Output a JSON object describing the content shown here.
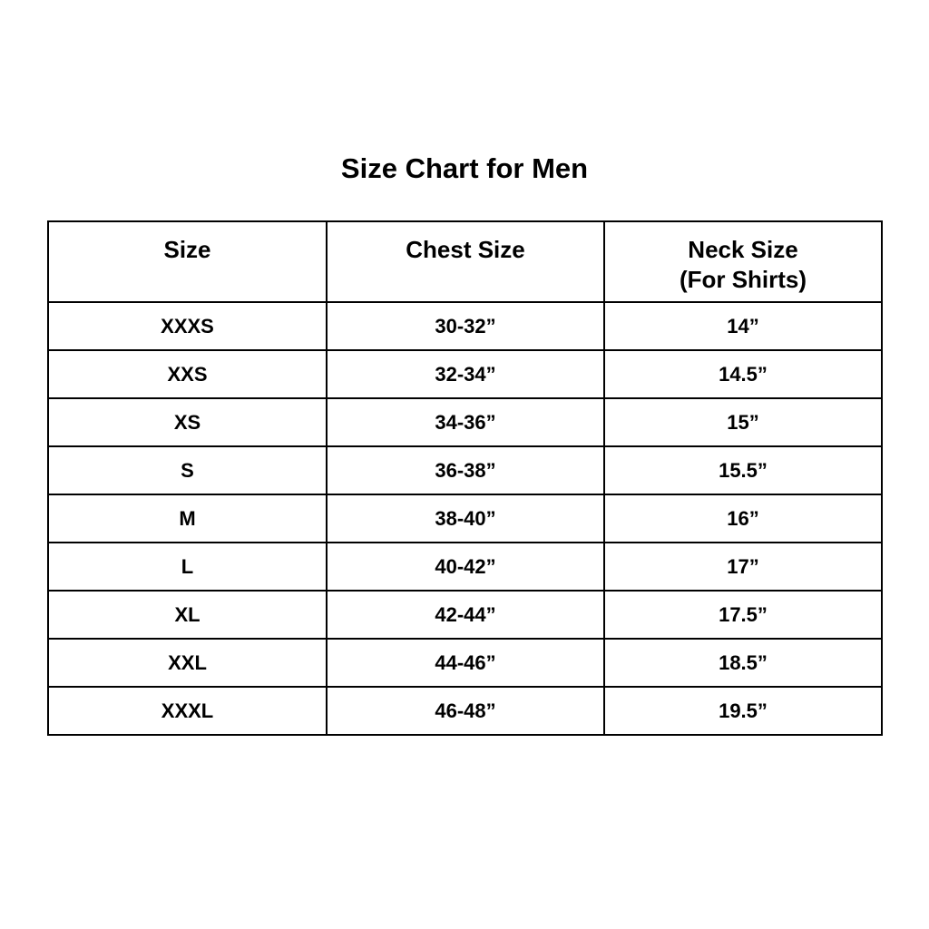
{
  "title": "Size Chart for Men",
  "table": {
    "headers": [
      {
        "label": "Size",
        "sub": ""
      },
      {
        "label": "Chest Size",
        "sub": ""
      },
      {
        "label": "Neck Size",
        "sub": "(For Shirts)"
      }
    ],
    "rows": [
      [
        "XXXS",
        "30-32”",
        "14”"
      ],
      [
        "XXS",
        "32-34”",
        "14.5”"
      ],
      [
        "XS",
        "34-36”",
        "15”"
      ],
      [
        "S",
        "36-38”",
        "15.5”"
      ],
      [
        "M",
        "38-40”",
        "16”"
      ],
      [
        "L",
        "40-42”",
        "17”"
      ],
      [
        "XL",
        "42-44”",
        "17.5”"
      ],
      [
        "XXL",
        "44-46”",
        "18.5”"
      ],
      [
        "XXXL",
        "46-48”",
        "19.5”"
      ]
    ]
  }
}
